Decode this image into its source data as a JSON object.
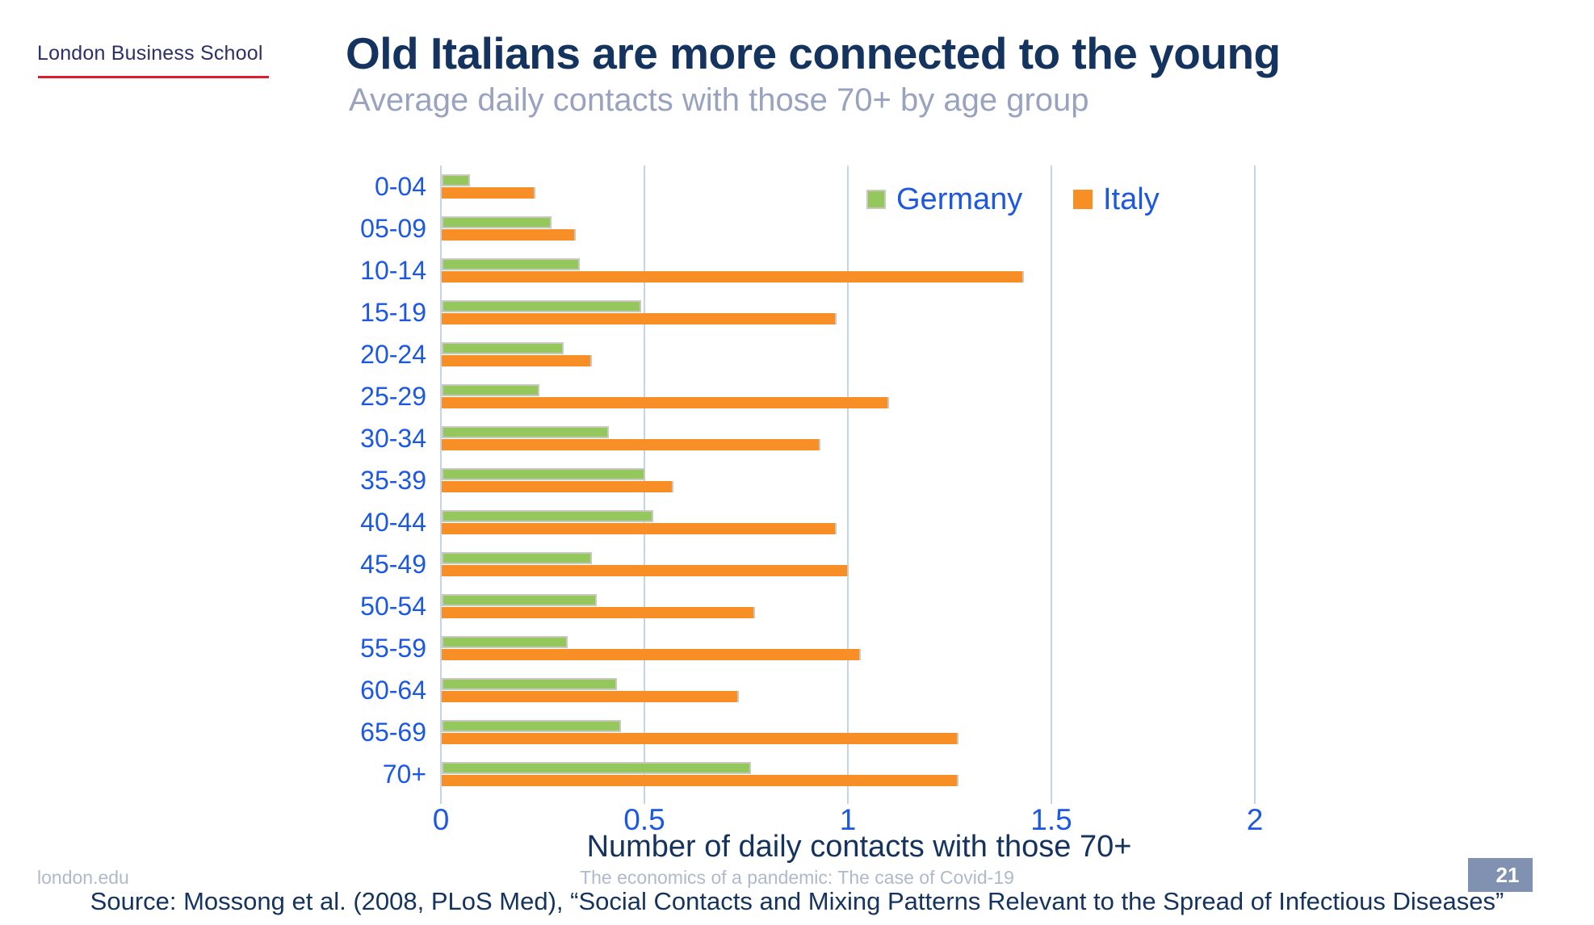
{
  "slide": {
    "logo_text": "London Business School",
    "title": "Old Italians are more connected to the young",
    "subtitle": "Average daily contacts with those 70+ by age group",
    "footer_left": "london.edu",
    "footer_center": "The economics of a pandemic: The case of Covid-19",
    "page_number": "21",
    "source": "Source: Mossong et al. (2008, PLoS Med), “Social Contacts and Mixing Patterns Relevant to the Spread of Infectious Diseases”"
  },
  "colors": {
    "title_navy": "#14335e",
    "logo_navy": "#2e2e68",
    "logo_red": "#dc1f2e",
    "subtitle_gray": "#99a3c0",
    "label_blue": "#1d58e2",
    "gridline": "#c6d3ef",
    "germany_green": "#95c85c",
    "italy_orange": "#f88e26",
    "bar_border_gray": "#c9c9c2",
    "footer_gray": "#b0b9cc",
    "page_badge_bg": "#8191b2"
  },
  "chart_data": {
    "type": "bar",
    "orientation": "horizontal",
    "title": "Old Italians are more connected to the young",
    "subtitle": "Average daily contacts with those 70+ by age group",
    "xlabel": "Number of daily contacts with those 70+",
    "ylabel": "",
    "xlim": [
      0,
      2
    ],
    "xticks": [
      0,
      0.5,
      1,
      1.5,
      2
    ],
    "xtick_labels": [
      "0",
      "0.5",
      "1",
      "1.5",
      "2"
    ],
    "grid": true,
    "legend_position": "top-right-inside",
    "categories": [
      "0-04",
      "05-09",
      "10-14",
      "15-19",
      "20-24",
      "25-29",
      "30-34",
      "35-39",
      "40-44",
      "45-49",
      "50-54",
      "55-59",
      "60-64",
      "65-69",
      "70+"
    ],
    "series": [
      {
        "name": "Germany",
        "color": "#95c85c",
        "values": [
          0.07,
          0.27,
          0.34,
          0.49,
          0.3,
          0.24,
          0.41,
          0.5,
          0.52,
          0.37,
          0.38,
          0.31,
          0.43,
          0.44,
          0.76
        ]
      },
      {
        "name": "Italy",
        "color": "#f88e26",
        "values": [
          0.23,
          0.33,
          1.43,
          0.97,
          0.37,
          1.1,
          0.93,
          0.57,
          0.97,
          1.0,
          0.77,
          1.03,
          0.73,
          1.27,
          1.27
        ]
      }
    ]
  }
}
